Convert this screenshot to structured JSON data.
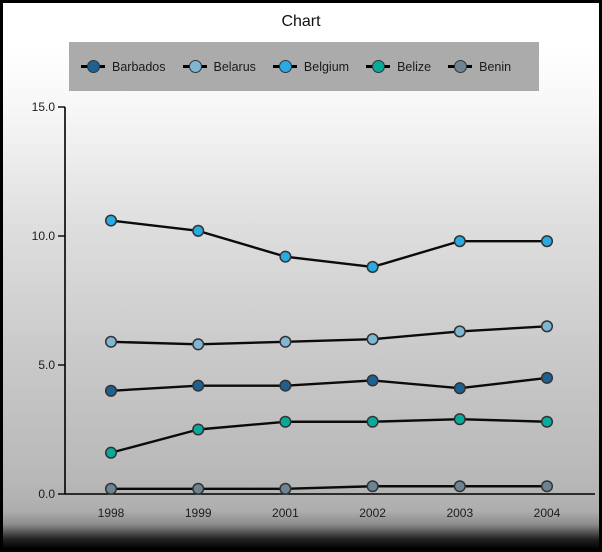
{
  "window": {
    "title": "Chart"
  },
  "chart_data": {
    "type": "line",
    "title": "Chart",
    "xlabel": "",
    "ylabel": "",
    "x": [
      "1998",
      "1999",
      "2001",
      "2002",
      "2003",
      "2004"
    ],
    "series": [
      {
        "name": "Barbados",
        "color": "#1e6191",
        "values": [
          4.0,
          4.2,
          4.2,
          4.4,
          4.1,
          4.5
        ]
      },
      {
        "name": "Belarus",
        "color": "#7eb6d4",
        "values": [
          5.9,
          5.8,
          5.9,
          6.0,
          6.3,
          6.5
        ]
      },
      {
        "name": "Belgium",
        "color": "#29abe2",
        "values": [
          10.6,
          10.2,
          9.2,
          8.8,
          9.8,
          9.8
        ]
      },
      {
        "name": "Belize",
        "color": "#06ab9b",
        "values": [
          1.6,
          2.5,
          2.8,
          2.8,
          2.9,
          2.8
        ]
      },
      {
        "name": "Benin",
        "color": "#6d8494",
        "values": [
          0.2,
          0.2,
          0.2,
          0.3,
          0.3,
          0.3
        ]
      }
    ],
    "ylim": [
      0,
      15
    ],
    "yticks": [
      "15.0",
      "10.0",
      "5.0",
      "0.0"
    ],
    "ytick_values": [
      15,
      10,
      5,
      0
    ],
    "grid": false,
    "legend_position": "top",
    "colors": {
      "legend_bg": "#ababab",
      "line": "#0b0b0b",
      "marker_stroke": "#333333",
      "axis": "#000000",
      "text": "#1c1c1c"
    }
  }
}
